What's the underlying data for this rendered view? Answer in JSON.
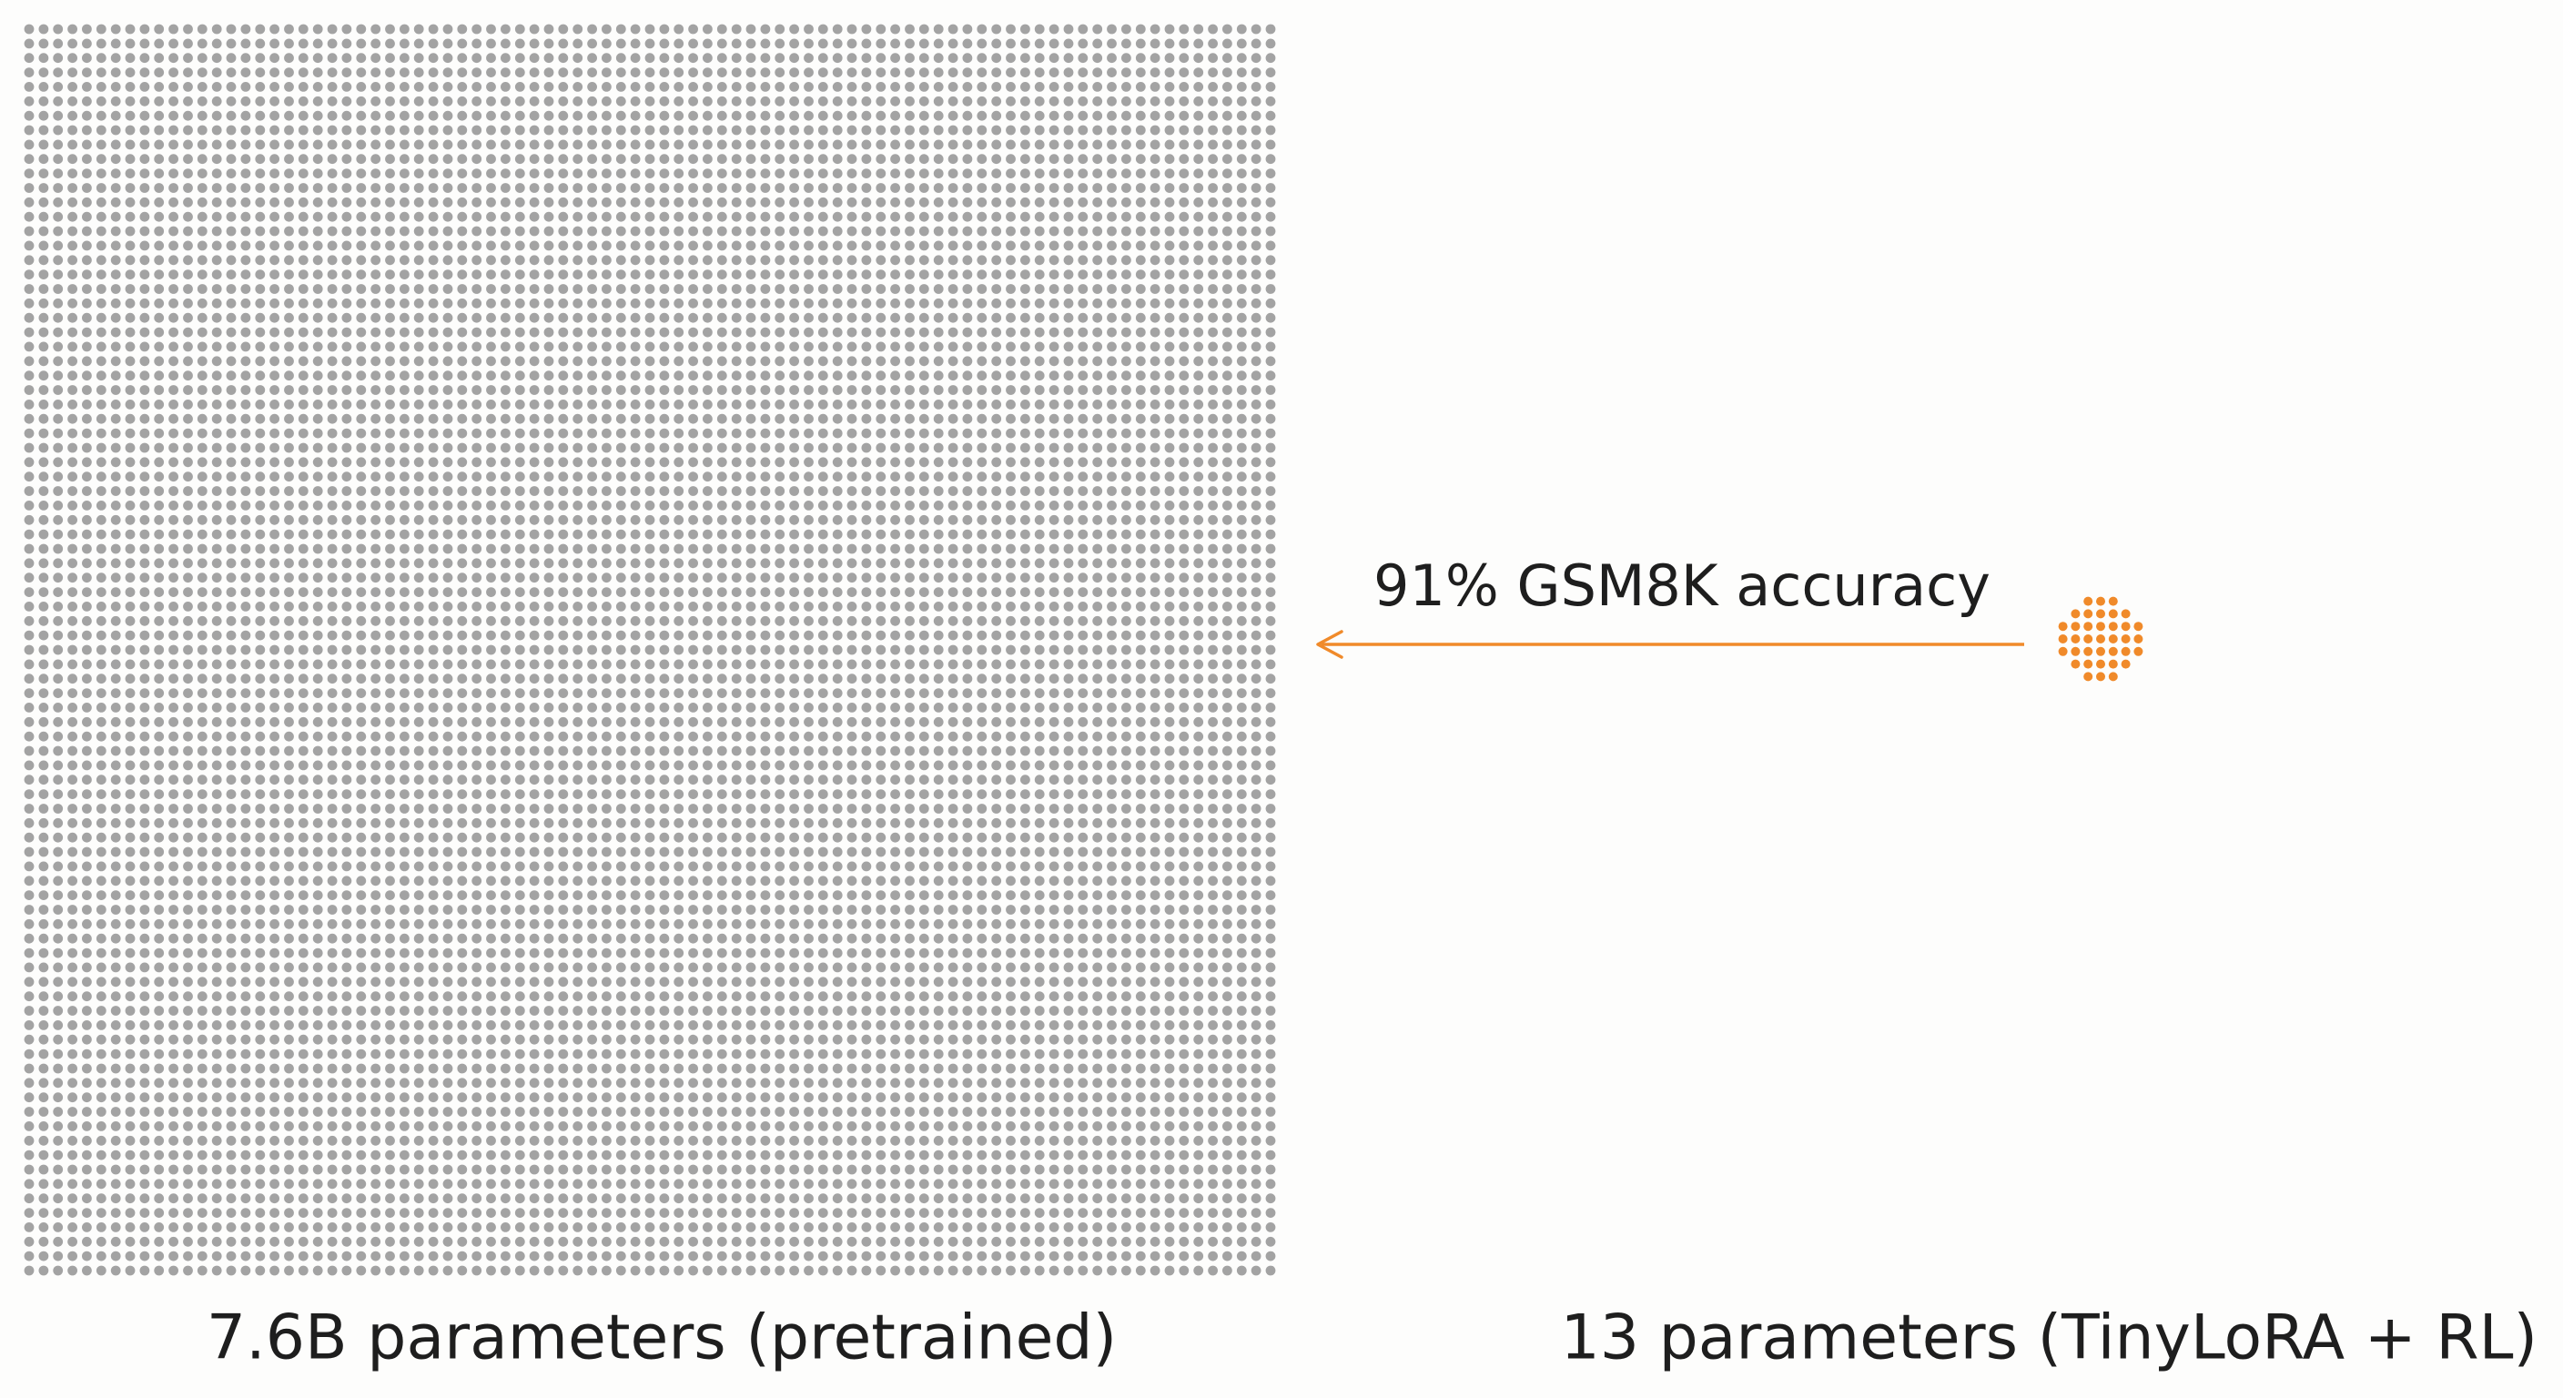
{
  "labels": {
    "left": "7.6B parameters (pretrained)",
    "right": "13 parameters (TinyLoRA + RL)",
    "arrow": "91% GSM8K accuracy"
  }
}
